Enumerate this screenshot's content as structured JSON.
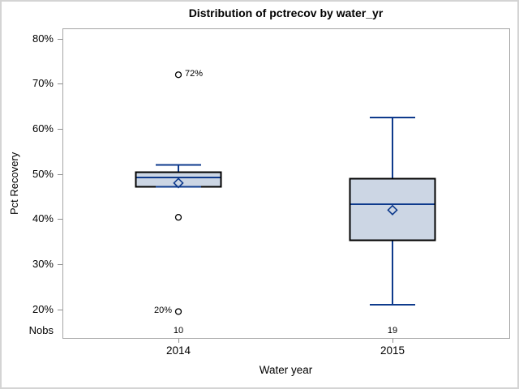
{
  "chart_data": {
    "type": "boxplot",
    "title": "Distribution of pctrecov by water_yr",
    "xlabel": "Water year",
    "ylabel": "Pct Recovery",
    "nobs_label": "Nobs",
    "y_axis": {
      "unit": "%",
      "ticks": [
        80,
        70,
        60,
        50,
        40,
        30,
        20
      ],
      "tick_labels": [
        "80%",
        "70%",
        "60%",
        "50%",
        "40%",
        "30%",
        "20%"
      ],
      "range_shown": [
        20,
        80
      ]
    },
    "categories": [
      "2014",
      "2015"
    ],
    "boxes": [
      {
        "category": "2014",
        "nobs": "10",
        "whisker_high": 52,
        "q3": 50.4,
        "median": 49.2,
        "mean": 48,
        "q1": 47.2,
        "whisker_low": 47.2,
        "outliers": [
          {
            "value": 72,
            "label": "72%",
            "label_side": "right"
          },
          {
            "value": 40.4,
            "label": "",
            "label_side": ""
          },
          {
            "value": 19.5,
            "label": "20%",
            "label_side": "left"
          }
        ]
      },
      {
        "category": "2015",
        "nobs": "19",
        "whisker_high": 62.5,
        "q3": 49,
        "median": 43.3,
        "mean": 42,
        "q1": 35.3,
        "whisker_low": 21,
        "outliers": []
      }
    ],
    "legend": null
  },
  "colors": {
    "box_fill": "#ccd6e4",
    "box_border": "#000000",
    "line_blue": "#0e3a8c",
    "outlier_stroke": "#000000",
    "frame": "#a5a5a5",
    "tick": "#8c8c8c",
    "text": "#000000",
    "window_border": "#d4d4d4"
  }
}
